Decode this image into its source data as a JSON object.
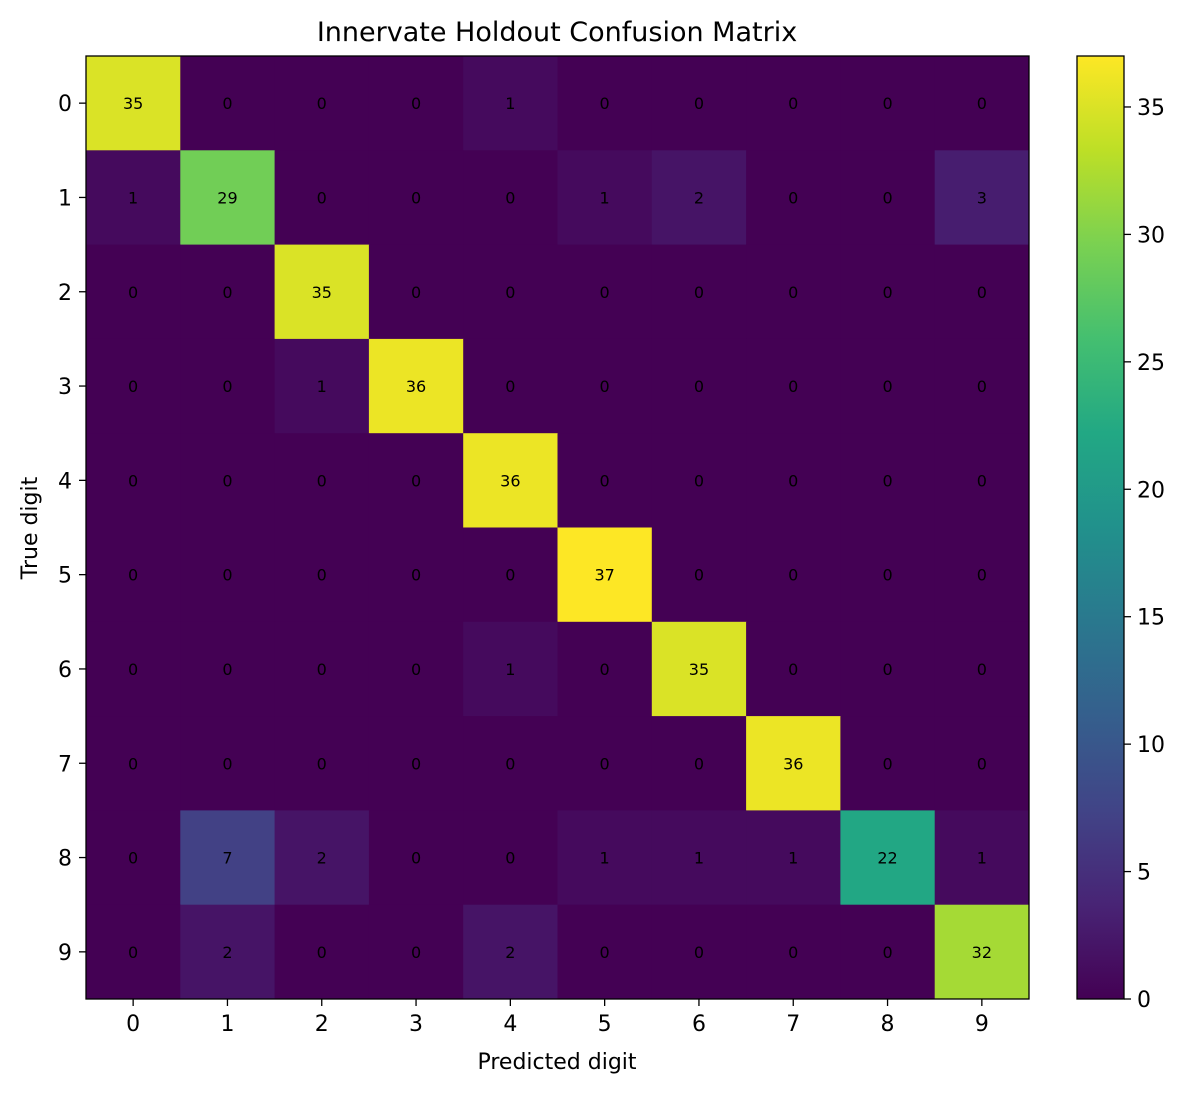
{
  "chart_data": {
    "type": "heatmap",
    "title": "Innervate Holdout Confusion Matrix",
    "xlabel": "Predicted digit",
    "ylabel": "True digit",
    "x_categories": [
      "0",
      "1",
      "2",
      "3",
      "4",
      "5",
      "6",
      "7",
      "8",
      "9"
    ],
    "y_categories": [
      "0",
      "1",
      "2",
      "3",
      "4",
      "5",
      "6",
      "7",
      "8",
      "9"
    ],
    "values": [
      [
        35,
        0,
        0,
        0,
        1,
        0,
        0,
        0,
        0,
        0
      ],
      [
        1,
        29,
        0,
        0,
        0,
        1,
        2,
        0,
        0,
        3
      ],
      [
        0,
        0,
        35,
        0,
        0,
        0,
        0,
        0,
        0,
        0
      ],
      [
        0,
        0,
        1,
        36,
        0,
        0,
        0,
        0,
        0,
        0
      ],
      [
        0,
        0,
        0,
        0,
        36,
        0,
        0,
        0,
        0,
        0
      ],
      [
        0,
        0,
        0,
        0,
        0,
        37,
        0,
        0,
        0,
        0
      ],
      [
        0,
        0,
        0,
        0,
        1,
        0,
        35,
        0,
        0,
        0
      ],
      [
        0,
        0,
        0,
        0,
        0,
        0,
        0,
        36,
        0,
        0
      ],
      [
        0,
        7,
        2,
        0,
        0,
        1,
        1,
        1,
        22,
        1
      ],
      [
        0,
        2,
        0,
        0,
        2,
        0,
        0,
        0,
        0,
        32
      ]
    ],
    "colormap": "viridis",
    "colorbar_range": [
      0,
      37
    ],
    "colorbar_ticks": [
      "0",
      "5",
      "10",
      "15",
      "20",
      "25",
      "30",
      "35"
    ]
  }
}
